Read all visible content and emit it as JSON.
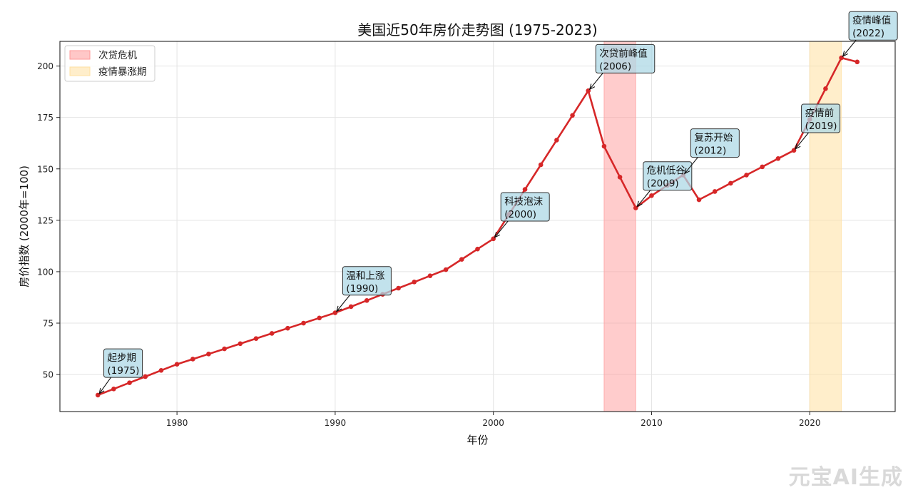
{
  "chart_data": {
    "type": "line",
    "title": "美国近50年房价走势图 (1975-2023)",
    "xlabel": "年份",
    "ylabel": "房价指数 (2000年=100)",
    "xlim": [
      1972.6,
      2025.4
    ],
    "ylim": [
      32,
      212
    ],
    "xticks": [
      1980,
      1990,
      2000,
      2010,
      2020
    ],
    "yticks": [
      50,
      75,
      100,
      125,
      150,
      175,
      200
    ],
    "grid": true,
    "legend_position": "top-left",
    "series": [
      {
        "color": "#d62728",
        "x": [
          1975,
          1976,
          1977,
          1978,
          1979,
          1980,
          1981,
          1982,
          1983,
          1984,
          1985,
          1986,
          1987,
          1988,
          1989,
          1990,
          1991,
          1992,
          1993,
          1994,
          1995,
          1996,
          1997,
          1998,
          1999,
          2000,
          2001,
          2002,
          2003,
          2004,
          2005,
          2006,
          2007,
          2008,
          2009,
          2010,
          2011,
          2012,
          2013,
          2014,
          2015,
          2016,
          2017,
          2018,
          2019,
          2020,
          2021,
          2022,
          2023
        ],
        "values": [
          40,
          43,
          46,
          49,
          52,
          55,
          57.5,
          60,
          62.5,
          65,
          67.5,
          70,
          72.5,
          75,
          77.5,
          80,
          83,
          86,
          89,
          92,
          95,
          98,
          101,
          106,
          111,
          116,
          128,
          140,
          152,
          164,
          176,
          188,
          161,
          146,
          131,
          137,
          142,
          147,
          135,
          139,
          143,
          147,
          151,
          155,
          159,
          174,
          189,
          204,
          202
        ]
      }
    ],
    "shaded_regions": [
      {
        "label": "次贷危机",
        "x_start": 2007,
        "x_end": 2009,
        "color": "#ff9999"
      },
      {
        "label": "疫情暴涨期",
        "x_start": 2020,
        "x_end": 2022,
        "color": "#ffe0a0"
      }
    ],
    "annotations": [
      {
        "line1": "起步期",
        "line2": "(1975)",
        "x": 1975,
        "y": 40,
        "text_x": 1975.6,
        "text_y": 50
      },
      {
        "line1": "温和上涨",
        "line2": "(1990)",
        "x": 1990,
        "y": 80,
        "text_x": 1990.7,
        "text_y": 90
      },
      {
        "line1": "科技泡沫",
        "line2": "(2000)",
        "x": 2000,
        "y": 116,
        "text_x": 2000.7,
        "text_y": 126
      },
      {
        "line1": "次贷前峰值",
        "line2": "(2006)",
        "x": 2006,
        "y": 188,
        "text_x": 2006.7,
        "text_y": 198
      },
      {
        "line1": "危机低谷",
        "line2": "(2009)",
        "x": 2009,
        "y": 131,
        "text_x": 2009.7,
        "text_y": 141
      },
      {
        "line1": "复苏开始",
        "line2": "(2012)",
        "x": 2012,
        "y": 147,
        "text_x": 2012.7,
        "text_y": 157
      },
      {
        "line1": "疫情前",
        "line2": "(2019)",
        "x": 2019,
        "y": 159,
        "text_x": 2019.7,
        "text_y": 169
      },
      {
        "line1": "疫情峰值",
        "line2": "(2022)",
        "x": 2022,
        "y": 204,
        "text_x": 2022.7,
        "text_y": 214
      }
    ]
  },
  "watermark": "元宝AI生成"
}
